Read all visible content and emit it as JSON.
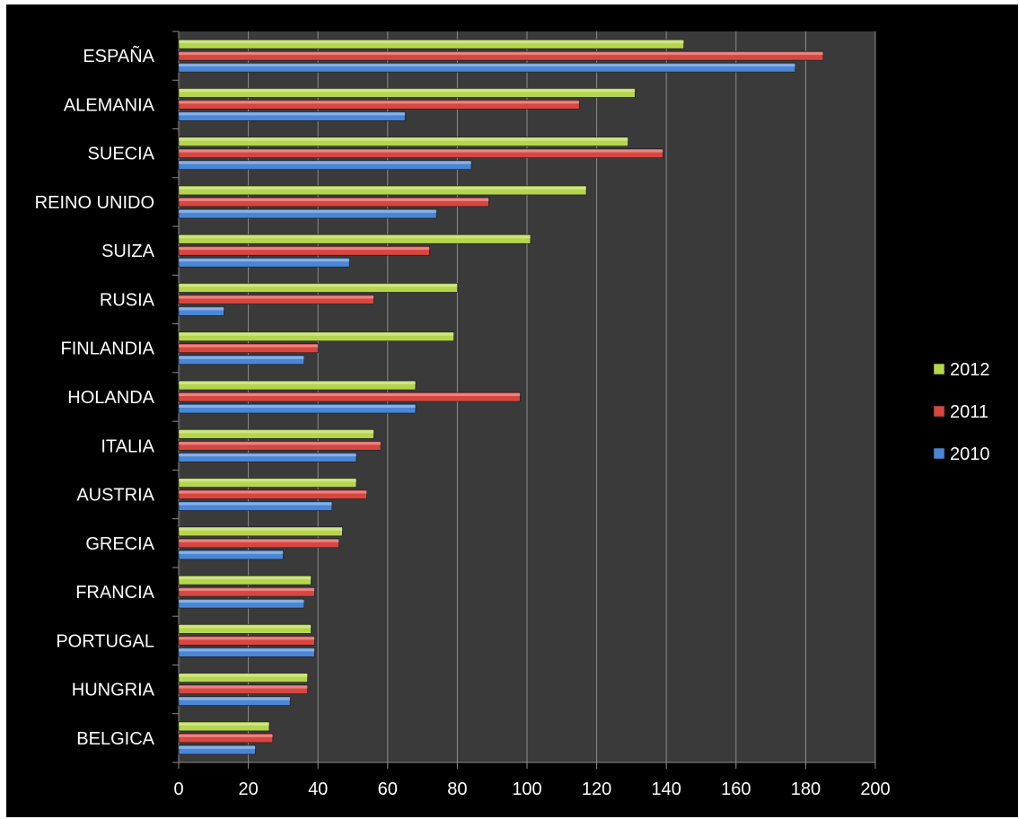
{
  "chart_data": {
    "type": "bar",
    "orientation": "horizontal",
    "categories": [
      "ESPAÑA",
      "ALEMANIA",
      "SUECIA",
      "REINO UNIDO",
      "SUIZA",
      "RUSIA",
      "FINLANDIA",
      "HOLANDA",
      "ITALIA",
      "AUSTRIA",
      "GRECIA",
      "FRANCIA",
      "PORTUGAL",
      "HUNGRIA",
      "BELGICA"
    ],
    "series": [
      {
        "name": "2012",
        "color": "#b5d64b",
        "values": [
          145,
          131,
          129,
          117,
          101,
          80,
          79,
          68,
          56,
          51,
          47,
          38,
          38,
          37,
          26
        ]
      },
      {
        "name": "2011",
        "color": "#d9463f",
        "values": [
          185,
          115,
          139,
          89,
          72,
          56,
          40,
          98,
          58,
          54,
          46,
          39,
          39,
          37,
          27
        ]
      },
      {
        "name": "2010",
        "color": "#4a86d6",
        "values": [
          177,
          65,
          84,
          74,
          49,
          13,
          36,
          68,
          51,
          44,
          30,
          36,
          39,
          32,
          22
        ]
      }
    ],
    "xlim": [
      0,
      200
    ],
    "xticks": [
      0,
      20,
      40,
      60,
      80,
      100,
      120,
      140,
      160,
      180,
      200
    ],
    "grid": true,
    "legend_position": "right",
    "plot_background": "#3a3a3a"
  }
}
